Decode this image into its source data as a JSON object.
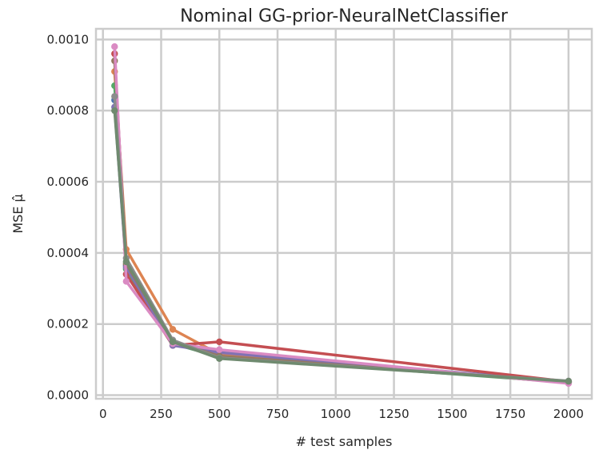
{
  "chart_data": {
    "type": "line",
    "title": "Nominal GG-prior-NeuralNetClassifier",
    "xlabel": "# test samples",
    "ylabel": "MSE μ̂",
    "xlim": [
      -30,
      2100
    ],
    "ylim": [
      -1e-05,
      0.00103
    ],
    "xticks": [
      0,
      250,
      500,
      750,
      1000,
      1250,
      1500,
      1750,
      2000
    ],
    "yticks": [
      0.0,
      0.0002,
      0.0004,
      0.0006,
      0.0008,
      0.001
    ],
    "ytick_labels": [
      "0.0000",
      "0.0002",
      "0.0004",
      "0.0006",
      "0.0008",
      "0.0010"
    ],
    "grid": true,
    "legend": "none",
    "x": [
      50,
      100,
      300,
      500,
      2000
    ],
    "series": [
      {
        "color": "#4c72b0",
        "values": [
          0.00083,
          0.000365,
          0.00015,
          0.00012,
          3.8e-05
        ]
      },
      {
        "color": "#dd8452",
        "values": [
          0.00091,
          0.00041,
          0.000185,
          0.000115,
          3.5e-05
        ]
      },
      {
        "color": "#55a868",
        "values": [
          0.00087,
          0.000355,
          0.000145,
          0.000108,
          3.6e-05
        ]
      },
      {
        "color": "#c44e52",
        "values": [
          0.00096,
          0.00034,
          0.00014,
          0.00015,
          3.8e-05
        ]
      },
      {
        "color": "#8172b3",
        "values": [
          0.00081,
          0.00036,
          0.00014,
          0.00012,
          3.5e-05
        ]
      },
      {
        "color": "#937860",
        "values": [
          0.00094,
          0.00037,
          0.00015,
          0.00011,
          3.7e-05
        ]
      },
      {
        "color": "#da8bc3",
        "values": [
          0.00098,
          0.00032,
          0.000145,
          0.000128,
          3.3e-05
        ]
      },
      {
        "color": "#8c8c8c",
        "values": [
          0.00084,
          0.000385,
          0.000155,
          0.000105,
          4e-05
        ]
      },
      {
        "color": "#6f8a6f",
        "values": [
          0.0008,
          0.000375,
          0.00015,
          0.000103,
          3.9e-05
        ]
      }
    ]
  }
}
